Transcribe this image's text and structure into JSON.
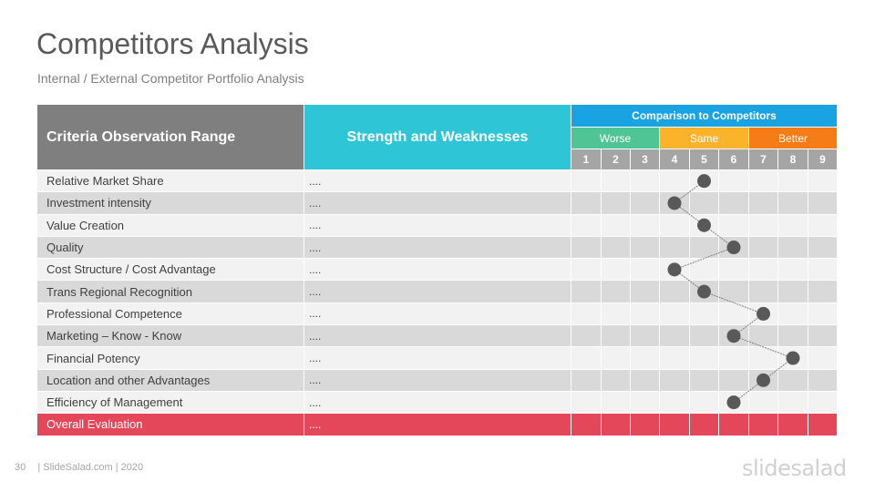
{
  "slide": {
    "title": "Competitors Analysis",
    "subtitle": "Internal / External Competitor Portfolio Analysis"
  },
  "table": {
    "criteria_header": "Criteria Observation Range",
    "strength_header": "Strength and Weaknesses",
    "comparison_header": "Comparison  to Competitors",
    "groups": [
      {
        "label": "Worse",
        "color": "#4fc596",
        "span": 3
      },
      {
        "label": "Same",
        "color": "#fab32a",
        "span": 3
      },
      {
        "label": "Better",
        "color": "#f57c16",
        "span": 3
      }
    ],
    "scale": [
      "1",
      "2",
      "3",
      "4",
      "5",
      "6",
      "7",
      "8",
      "9"
    ],
    "rows": [
      {
        "criterion": "Relative Market Share",
        "value": "....",
        "score": 5
      },
      {
        "criterion": "Investment intensity",
        "value": "....",
        "score": 4
      },
      {
        "criterion": "Value Creation",
        "value": "....",
        "score": 5
      },
      {
        "criterion": "Quality",
        "value": "....",
        "score": 6
      },
      {
        "criterion": "Cost Structure / Cost Advantage",
        "value": "....",
        "score": 4
      },
      {
        "criterion": "Trans Regional Recognition",
        "value": "....",
        "score": 5
      },
      {
        "criterion": "Professional  Competence",
        "value": "....",
        "score": 7
      },
      {
        "criterion": "Marketing  – Know - Know",
        "value": "....",
        "score": 6
      },
      {
        "criterion": "Financial Potency",
        "value": "....",
        "score": 8
      },
      {
        "criterion": "Location and other Advantages",
        "value": "....",
        "score": 7
      },
      {
        "criterion": "Efficiency of Management",
        "value": "....",
        "score": 6
      }
    ],
    "total": {
      "criterion": "Overall Evaluation",
      "value": "...."
    }
  },
  "colors": {
    "marker": "#595959",
    "connector": "#7f7f7f",
    "total_row": "#e5475a"
  },
  "footer": {
    "page_number": "30",
    "text": "| SlideSalad.com | 2020",
    "logo": "slidesalad"
  }
}
